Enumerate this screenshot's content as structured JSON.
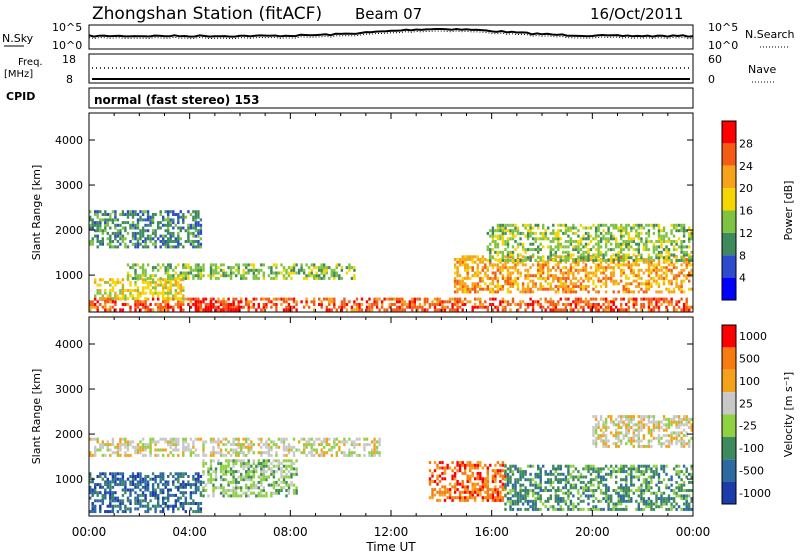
{
  "header": {
    "title": "Zhongshan Station (fitACF)",
    "beam": "Beam 07",
    "date": "16/Oct/2011"
  },
  "sky_panel": {
    "left_label": "N.Sky",
    "right_label": "N.Search",
    "ticks": [
      "10^5",
      "10^0"
    ]
  },
  "freq_panel": {
    "left_label_top": "Freq.",
    "left_label_unit": "[MHz]",
    "left_ticks": [
      "18",
      "8"
    ],
    "right_ticks": [
      "60",
      "0"
    ],
    "right_label": "Nave"
  },
  "cpid_panel": {
    "label": "CPID",
    "text": "normal (fast stereo) 153"
  },
  "chart_data": [
    {
      "type": "heatmap",
      "name": "power-panel",
      "ylabel": "Slant Range [km]",
      "y_ticks": [
        "1000",
        "2000",
        "3000",
        "4000"
      ],
      "y_tick_values": [
        1000,
        2000,
        3000,
        4000
      ],
      "ylim": [
        180,
        4600
      ],
      "colorbar_label": "Power [dB]",
      "colorbar_ticks": [
        "4",
        "8",
        "12",
        "16",
        "20",
        "24",
        "28"
      ],
      "colorbar_colors": [
        "#0000ff",
        "#2c4bcd",
        "#3e8a5c",
        "#7fc342",
        "#f5d600",
        "#f7a21b",
        "#f45b14",
        "#ff0000"
      ],
      "bands": [
        {
          "range_km": [
            200,
            450
          ],
          "hours": [
            0,
            24
          ],
          "class": 6
        },
        {
          "range_km": [
            450,
            900
          ],
          "hours": [
            0.2,
            3.8
          ],
          "class": 4
        },
        {
          "range_km": [
            900,
            1250
          ],
          "hours": [
            1.5,
            10.5
          ],
          "class": 3
        },
        {
          "range_km": [
            1600,
            2400
          ],
          "hours": [
            0,
            4.5
          ],
          "class": 2
        },
        {
          "range_km": [
            600,
            1400
          ],
          "hours": [
            14.5,
            24
          ],
          "class": 5
        },
        {
          "range_km": [
            1300,
            2100
          ],
          "hours": [
            15.8,
            24
          ],
          "class": 3
        },
        {
          "range_km": [
            200,
            400
          ],
          "hours": [
            4.2,
            6
          ],
          "class": 7
        }
      ]
    },
    {
      "type": "heatmap",
      "name": "velocity-panel",
      "ylabel": "Slant Range [km]",
      "y_ticks": [
        "1000",
        "2000",
        "3000",
        "4000"
      ],
      "y_tick_values": [
        1000,
        2000,
        3000,
        4000
      ],
      "ylim": [
        180,
        4600
      ],
      "colorbar_label": "Velocity [m s⁻¹]",
      "colorbar_ticks": [
        "1000",
        "500",
        "100",
        "25",
        "-25",
        "-100",
        "-500",
        "-1000"
      ],
      "colorbar_colors": [
        "#1c3cab",
        "#2d6a9f",
        "#3e8a5c",
        "#8fd143",
        "#c8c8c8",
        "#f5a21b",
        "#f77b0f",
        "#ff0000"
      ],
      "bands": [
        {
          "range_km": [
            250,
            1100
          ],
          "hours": [
            0,
            4.5
          ],
          "class": 1
        },
        {
          "range_km": [
            600,
            1400
          ],
          "hours": [
            4.5,
            8.2
          ],
          "class": 3
        },
        {
          "range_km": [
            1500,
            1900
          ],
          "hours": [
            0,
            11.5
          ],
          "class": 4
        },
        {
          "range_km": [
            500,
            1400
          ],
          "hours": [
            13.5,
            16.5
          ],
          "class": 6
        },
        {
          "range_km": [
            300,
            1300
          ],
          "hours": [
            16.5,
            24
          ],
          "class": 2
        },
        {
          "range_km": [
            1700,
            2400
          ],
          "hours": [
            20,
            24
          ],
          "class": 4
        }
      ]
    }
  ],
  "x_axis": {
    "label": "Time UT",
    "ticks": [
      "00:00",
      "04:00",
      "08:00",
      "12:00",
      "16:00",
      "20:00",
      "00:00"
    ],
    "tick_hours": [
      0,
      4,
      8,
      12,
      16,
      20,
      24
    ]
  }
}
